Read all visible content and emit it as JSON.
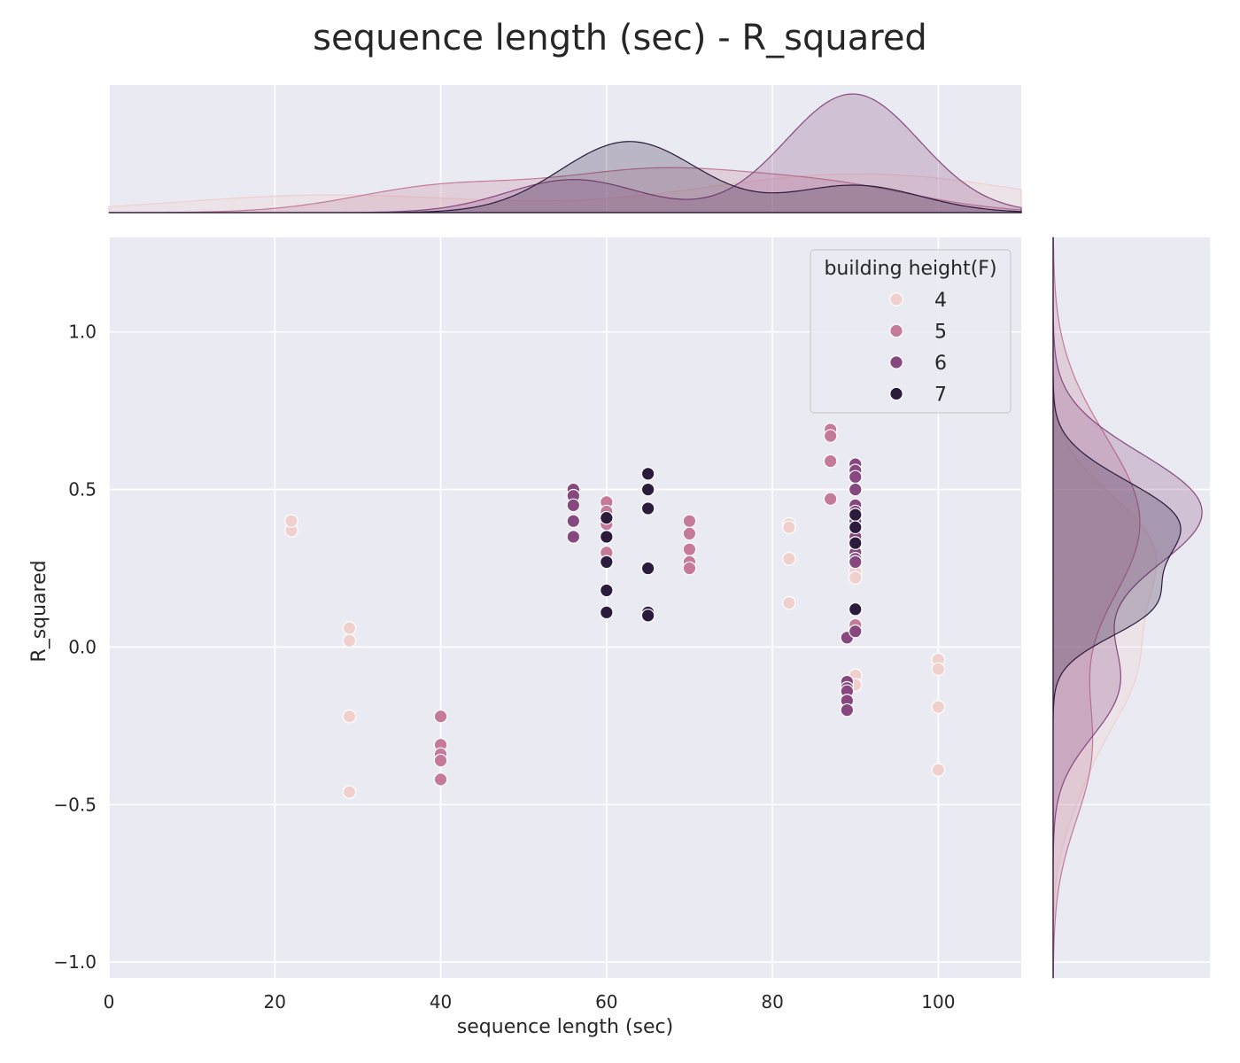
{
  "colors": {
    "background": "#eaeaf2",
    "grid": "#ffffff",
    "h4": "#efd0cc",
    "h5": "#c47a98",
    "h6": "#874880",
    "h7": "#2b1c3e"
  },
  "chart_data": {
    "type": "scatter",
    "title": "sequence length (sec) - R_squared",
    "xlabel": "sequence length (sec)",
    "ylabel": "R_squared",
    "xlim": [
      0,
      110
    ],
    "ylim": [
      -1.05,
      1.3
    ],
    "xticks": [
      0,
      20,
      40,
      60,
      80,
      100
    ],
    "xtick_labels": [
      "0",
      "20",
      "40",
      "60",
      "80",
      "100"
    ],
    "yticks": [
      -1.0,
      -0.5,
      0.0,
      0.5,
      1.0
    ],
    "ytick_labels": [
      "−1.0",
      "−0.5",
      "0.0",
      "0.5",
      "1.0"
    ],
    "grid": true,
    "legend": {
      "title": "building height(F)",
      "position": "top-right"
    },
    "marginals": {
      "top": "kde of sequence length by hue",
      "right": "kde of R_squared by hue"
    },
    "series": [
      {
        "name": "4",
        "x": [
          22,
          22,
          29,
          29,
          29,
          29,
          82,
          82,
          82,
          82,
          90,
          90,
          90,
          90,
          90,
          90,
          100,
          100,
          100,
          100
        ],
        "y": [
          0.37,
          0.4,
          0.06,
          0.02,
          -0.22,
          -0.46,
          0.39,
          0.38,
          0.28,
          0.14,
          0.32,
          0.3,
          0.24,
          0.22,
          -0.09,
          -0.12,
          -0.04,
          -0.07,
          -0.19,
          -0.39
        ]
      },
      {
        "name": "5",
        "x": [
          40,
          40,
          40,
          40,
          40,
          60,
          60,
          60,
          60,
          70,
          70,
          70,
          70,
          70,
          87,
          87,
          87,
          87,
          90
        ],
        "y": [
          -0.22,
          -0.31,
          -0.34,
          -0.36,
          -0.42,
          0.46,
          0.43,
          0.39,
          0.3,
          0.4,
          0.36,
          0.31,
          0.27,
          0.25,
          0.69,
          0.67,
          0.59,
          0.47,
          0.07
        ]
      },
      {
        "name": "6",
        "x": [
          56,
          56,
          56,
          56,
          56,
          89,
          89,
          89,
          89,
          89,
          89,
          90,
          90,
          90,
          90,
          90,
          90,
          90,
          90,
          90,
          90,
          90,
          90
        ],
        "y": [
          0.5,
          0.48,
          0.45,
          0.4,
          0.35,
          0.03,
          -0.11,
          -0.13,
          -0.14,
          -0.17,
          -0.2,
          0.58,
          0.56,
          0.54,
          0.5,
          0.45,
          0.43,
          0.4,
          0.35,
          0.3,
          0.28,
          0.27,
          0.05
        ]
      },
      {
        "name": "7",
        "x": [
          60,
          60,
          60,
          60,
          60,
          65,
          65,
          65,
          65,
          65,
          65,
          90,
          90,
          90,
          90
        ],
        "y": [
          0.41,
          0.35,
          0.27,
          0.18,
          0.11,
          0.55,
          0.5,
          0.44,
          0.25,
          0.11,
          0.1,
          0.42,
          0.38,
          0.33,
          0.12
        ]
      }
    ]
  }
}
